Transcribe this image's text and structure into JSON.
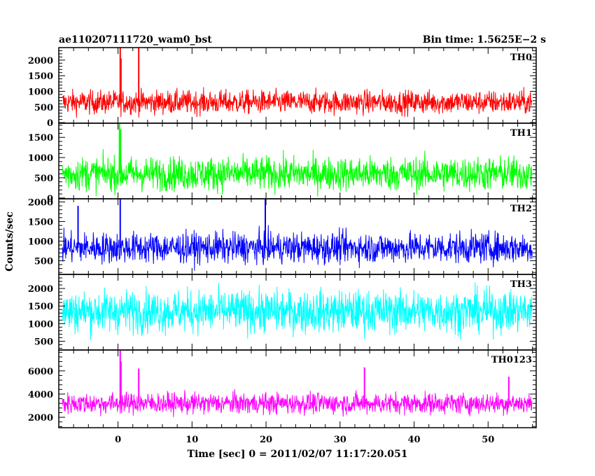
{
  "chart_data": {
    "type": "line",
    "title_left": "ae110207111720_wam0_bst",
    "title_right": "Bin time: 1.5625E−2 s",
    "xlabel": "Time [sec] 0 = 2011/02/07 11:17:20.051",
    "ylabel": "Counts/sec",
    "xlim": [
      -8,
      56.5
    ],
    "data_range": [
      -7.5,
      56
    ],
    "bin_time_s": 0.015625,
    "x_ticks": [
      0,
      10,
      20,
      30,
      40,
      50
    ],
    "x_tick_labels": [
      "0",
      "10",
      "20",
      "30",
      "40",
      "50"
    ],
    "panels": [
      {
        "name": "TH0",
        "color": "#ff0000",
        "ylim": [
          -20,
          2400
        ],
        "y_ticks": [
          0,
          500,
          1000,
          1500,
          2000
        ],
        "y_tick_labels": [
          "0",
          "500",
          "1000",
          "1500",
          "2000"
        ],
        "mean": 650,
        "noise": 270,
        "min": 0,
        "max": 1750,
        "spikes": [
          {
            "x": 0.3,
            "y": 2400
          },
          {
            "x": 0.4,
            "y": 2050
          },
          {
            "x": 2.8,
            "y": 2400
          }
        ]
      },
      {
        "name": "TH1",
        "color": "#00ff00",
        "ylim": [
          -20,
          1850
        ],
        "y_ticks": [
          0,
          500,
          1000,
          1500
        ],
        "y_tick_labels": [
          "0",
          "500",
          "1000",
          "1500"
        ],
        "mean": 600,
        "noise": 300,
        "min": 0,
        "max": 1700,
        "spikes": [
          {
            "x": 0.2,
            "y": 1850
          },
          {
            "x": 0.35,
            "y": 1700
          }
        ]
      },
      {
        "name": "TH2",
        "color": "#0000ff",
        "ylim": [
          150,
          2080
        ],
        "y_ticks": [
          500,
          1000,
          1500,
          2000
        ],
        "y_tick_labels": [
          "500",
          "1000",
          "1500",
          "2000"
        ],
        "mean": 830,
        "noise": 280,
        "min": 220,
        "max": 1800,
        "spikes": [
          {
            "x": 0.3,
            "y": 2080
          },
          {
            "x": 19.9,
            "y": 2080
          },
          {
            "x": -5.4,
            "y": 1900
          }
        ]
      },
      {
        "name": "TH3",
        "color": "#00ffff",
        "ylim": [
          250,
          2400
        ],
        "y_ticks": [
          500,
          1000,
          1500,
          2000
        ],
        "y_tick_labels": [
          "500",
          "1000",
          "1500",
          "2000"
        ],
        "mean": 1350,
        "noise": 430,
        "min": 250,
        "max": 2400,
        "spikes": []
      },
      {
        "name": "TH0123",
        "color": "#ff00ff",
        "ylim": [
          1100,
          7800
        ],
        "y_ticks": [
          2000,
          4000,
          6000
        ],
        "y_tick_labels": [
          "2000",
          "4000",
          "6000"
        ],
        "mean": 3200,
        "noise": 650,
        "min": 1100,
        "max": 5400,
        "spikes": [
          {
            "x": 0.3,
            "y": 7800
          },
          {
            "x": 0.4,
            "y": 6800
          },
          {
            "x": 2.8,
            "y": 6200
          },
          {
            "x": 33.3,
            "y": 6300
          },
          {
            "x": 52.8,
            "y": 5500
          }
        ]
      }
    ]
  }
}
